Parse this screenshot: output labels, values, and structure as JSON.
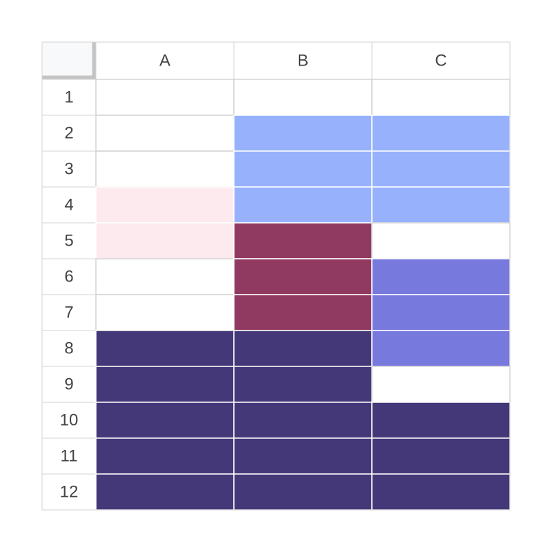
{
  "table": {
    "columns": [
      "A",
      "B",
      "C"
    ],
    "rows": [
      {
        "label": 1,
        "fills": [
          "#ffffff",
          "#ffffff",
          "#ffffff"
        ]
      },
      {
        "label": 2,
        "fills": [
          "#ffffff",
          "#97b1fd",
          "#97b1fd"
        ]
      },
      {
        "label": 3,
        "fills": [
          "#ffffff",
          "#97b1fd",
          "#97b1fd"
        ]
      },
      {
        "label": 4,
        "fills": [
          "#fdeaee",
          "#97b1fd",
          "#97b1fd"
        ]
      },
      {
        "label": 5,
        "fills": [
          "#fdeaee",
          "#913a61",
          "#ffffff"
        ]
      },
      {
        "label": 6,
        "fills": [
          "#ffffff",
          "#913a61",
          "#7879dc"
        ]
      },
      {
        "label": 7,
        "fills": [
          "#ffffff",
          "#913a61",
          "#7879dc"
        ]
      },
      {
        "label": 8,
        "fills": [
          "#443878",
          "#443878",
          "#7879dc"
        ]
      },
      {
        "label": 9,
        "fills": [
          "#443878",
          "#443878",
          "#ffffff"
        ]
      },
      {
        "label": 10,
        "fills": [
          "#443878",
          "#443878",
          "#443878"
        ]
      },
      {
        "label": 11,
        "fills": [
          "#443878",
          "#443878",
          "#443878"
        ]
      },
      {
        "label": 12,
        "fills": [
          "#443878",
          "#443878",
          "#443878"
        ]
      }
    ]
  }
}
